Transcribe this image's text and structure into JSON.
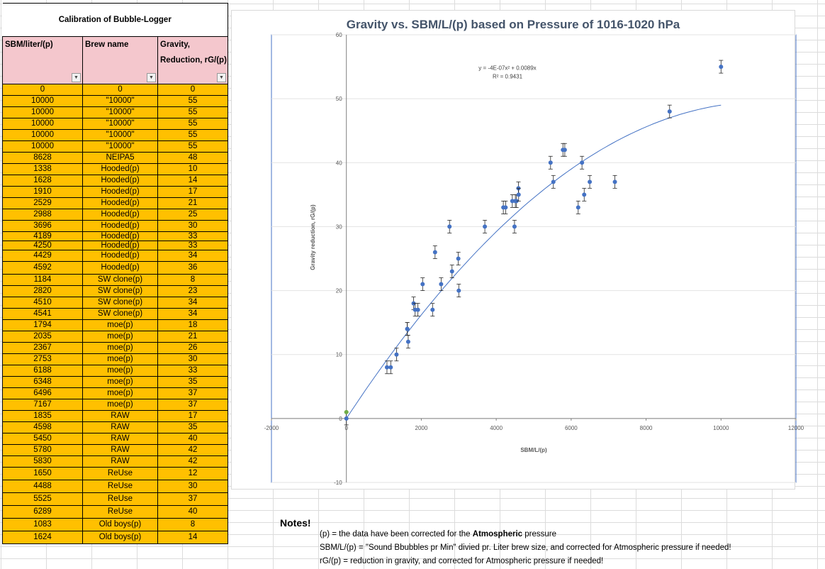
{
  "sheet": {
    "title": "Calibration of Bubble-Logger",
    "headers": [
      "SBM/liter/(p)",
      "Brew name",
      "Gravity, Reduction, rG/(p)"
    ],
    "rows": [
      [
        "0",
        "0",
        "0"
      ],
      [
        "10000",
        "\"10000\"",
        "55"
      ],
      [
        "10000",
        "\"10000\"",
        "55"
      ],
      [
        "10000",
        "\"10000\"",
        "55"
      ],
      [
        "10000",
        "\"10000\"",
        "55"
      ],
      [
        "10000",
        "\"10000\"",
        "55"
      ],
      [
        "8628",
        "NEIPA5",
        "48"
      ],
      [
        "1338",
        "Hooded(p)",
        "10"
      ],
      [
        "1628",
        "Hooded(p)",
        "14"
      ],
      [
        "1910",
        "Hooded(p)",
        "17"
      ],
      [
        "2529",
        "Hooded(p)",
        "21"
      ],
      [
        "2988",
        "Hooded(p)",
        "25"
      ],
      [
        "3696",
        "Hooded(p)",
        "30"
      ],
      [
        "4189",
        "Hooded(p)",
        "33"
      ],
      [
        "4250",
        "Hooded(p)",
        "33"
      ],
      [
        "4429",
        "Hooded(p)",
        "34"
      ],
      [
        "4592",
        "Hooded(p)",
        "36"
      ],
      [
        "1184",
        "SW clone(p)",
        "8"
      ],
      [
        "2820",
        "SW clone(p)",
        "23"
      ],
      [
        "4510",
        "SW clone(p)",
        "34"
      ],
      [
        "4541",
        "SW clone(p)",
        "34"
      ],
      [
        "1794",
        "moe(p)",
        "18"
      ],
      [
        "2035",
        "moe(p)",
        "21"
      ],
      [
        "2367",
        "moe(p)",
        "26"
      ],
      [
        "2753",
        "moe(p)",
        "30"
      ],
      [
        "6188",
        "moe(p)",
        "33"
      ],
      [
        "6348",
        "moe(p)",
        "35"
      ],
      [
        "6496",
        "moe(p)",
        "37"
      ],
      [
        "7167",
        "moe(p)",
        "37"
      ],
      [
        "1835",
        "RAW",
        "17"
      ],
      [
        "4598",
        "RAW",
        "35"
      ],
      [
        "5450",
        "RAW",
        "40"
      ],
      [
        "5780",
        "RAW",
        "42"
      ],
      [
        "5830",
        "RAW",
        "42"
      ],
      [
        "1650",
        "ReUse",
        "12"
      ],
      [
        "4488",
        "ReUse",
        "30"
      ],
      [
        "5525",
        "ReUse",
        "37"
      ],
      [
        "6289",
        "ReUse",
        "40"
      ],
      [
        "1083",
        "Old boys(p)",
        "8"
      ],
      [
        "1624",
        "Old boys(p)",
        "14"
      ]
    ]
  },
  "chart_data": {
    "type": "scatter",
    "title": "Gravity vs. SBM/L/(p) based on Pressure of 1016-1020 hPa",
    "xlabel": "SBM/L/(p)",
    "ylabel": "Gravity reduction, rG/(p)",
    "xlim": [
      -2000,
      12000
    ],
    "ylim": [
      -10,
      60
    ],
    "xticks": [
      "-2000",
      "0",
      "2000",
      "4000",
      "6000",
      "8000",
      "10000",
      "12000"
    ],
    "yticks": [
      "-10",
      "0",
      "10",
      "20",
      "30",
      "40",
      "50",
      "60"
    ],
    "grid": true,
    "error_bar": 1,
    "trendline": {
      "equation": "y = -4E-07x² + 0.0089x",
      "r2": "R² = 0.9431",
      "a": -4e-07,
      "b": 0.0089,
      "c": 0
    },
    "series": [
      {
        "color": "#4472c4",
        "points": [
          [
            0,
            0
          ],
          [
            10000,
            55
          ],
          [
            8628,
            48
          ],
          [
            1338,
            10
          ],
          [
            1628,
            14
          ],
          [
            1910,
            17
          ],
          [
            2529,
            21
          ],
          [
            2988,
            25
          ],
          [
            3696,
            30
          ],
          [
            4189,
            33
          ],
          [
            4250,
            33
          ],
          [
            4429,
            34
          ],
          [
            4592,
            36
          ],
          [
            1184,
            8
          ],
          [
            2820,
            23
          ],
          [
            4510,
            34
          ],
          [
            4541,
            34
          ],
          [
            1794,
            18
          ],
          [
            2035,
            21
          ],
          [
            2367,
            26
          ],
          [
            2753,
            30
          ],
          [
            6188,
            33
          ],
          [
            6348,
            35
          ],
          [
            6496,
            37
          ],
          [
            7167,
            37
          ],
          [
            1835,
            17
          ],
          [
            4598,
            35
          ],
          [
            5450,
            40
          ],
          [
            5780,
            42
          ],
          [
            5830,
            42
          ],
          [
            1650,
            12
          ],
          [
            4488,
            30
          ],
          [
            5525,
            37
          ],
          [
            6289,
            40
          ],
          [
            1083,
            8
          ],
          [
            1624,
            14
          ],
          [
            2300,
            17
          ],
          [
            3000,
            20
          ]
        ]
      },
      {
        "color": "#70ad47",
        "points": [
          [
            0,
            1
          ]
        ]
      }
    ]
  },
  "notes": {
    "title": "Notes!",
    "lines": [
      {
        "pre": "(p) = the data have been corrected for the ",
        "bold": "Atmospheric",
        "post": " pressure"
      },
      {
        "pre": "SBM/L/(p) = \"Sound Bbubbles pr Min\" divied pr. Liter brew size, and corrected for Atmospheric pressure if needed!",
        "bold": "",
        "post": ""
      },
      {
        "pre": "rG/(p) = reduction in gravity, and corrected for Atmospheric pressure if needed!",
        "bold": "",
        "post": ""
      }
    ]
  }
}
